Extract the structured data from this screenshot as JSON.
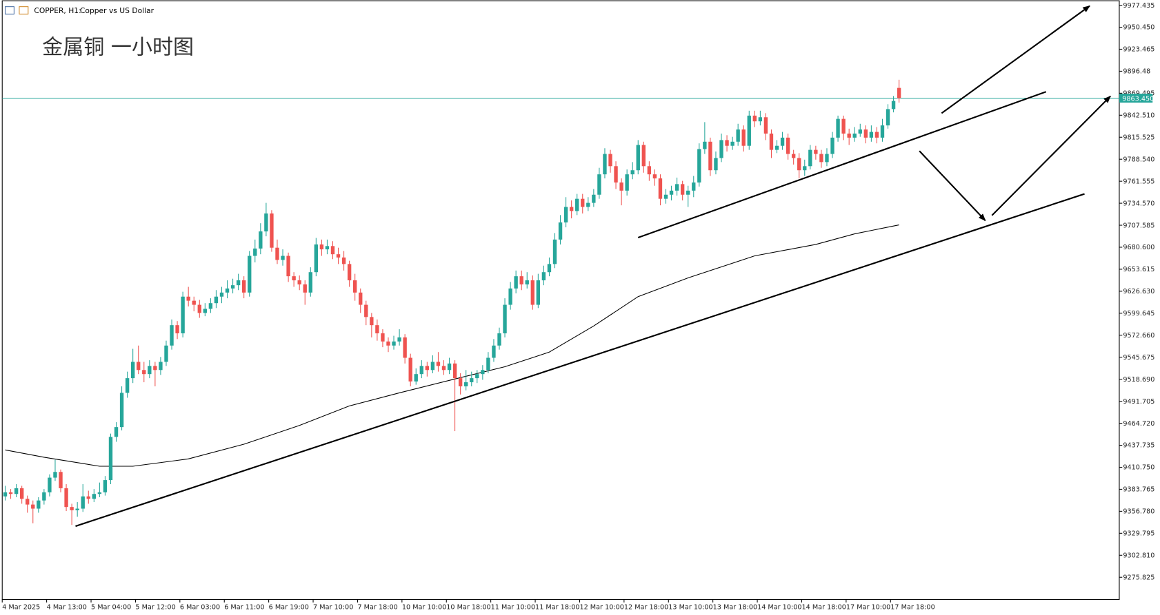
{
  "chart_data": {
    "type": "candlestick",
    "symbol": "COPPER, H1:",
    "description": "Copper vs US Dollar",
    "annotation": "金属铜 一小时图",
    "up_color": "#26a69a",
    "down_color": "#ef5350",
    "ylim": [
      9248.6,
      9982.9
    ],
    "yticks": [
      9977.435,
      {
        "value": 9950.45,
        "label": "9950.450"
      },
      9923.465,
      9896.48,
      9869.495,
      {
        "value": 9842.51,
        "label": "9842.510"
      },
      9815.525,
      {
        "value": 9788.54,
        "label": "9788.540"
      },
      9761.555,
      {
        "value": 9734.57,
        "label": "9734.570"
      },
      9707.585,
      {
        "value": 9680.6,
        "label": "9680.600"
      },
      9653.615,
      {
        "value": 9626.63,
        "label": "9626.630"
      },
      9599.645,
      {
        "value": 9572.66,
        "label": "9572.660"
      },
      9545.675,
      {
        "value": 9518.69,
        "label": "9518.690"
      },
      9491.705,
      {
        "value": 9464.72,
        "label": "9464.720"
      },
      9437.735,
      {
        "value": 9410.75,
        "label": "9410.750"
      },
      9383.765,
      {
        "value": 9356.78,
        "label": "9356.780"
      },
      9329.795,
      {
        "value": 9302.81,
        "label": "9302.810"
      },
      9275.825
    ],
    "xticks": [
      {
        "value": 0,
        "label": "4 Mar 2025"
      },
      {
        "value": 8,
        "label": "4 Mar 13:00"
      },
      {
        "value": 16,
        "label": "5 Mar 04:00"
      },
      {
        "value": 24,
        "label": "5 Mar 12:00"
      },
      {
        "value": 32,
        "label": "6 Mar 03:00"
      },
      {
        "value": 40,
        "label": "6 Mar 11:00"
      },
      {
        "value": 48,
        "label": "6 Mar 19:00"
      },
      {
        "value": 56,
        "label": "7 Mar 10:00"
      },
      {
        "value": 64,
        "label": "7 Mar 18:00"
      },
      {
        "value": 72,
        "label": "10 Mar 10:00"
      },
      {
        "value": 80,
        "label": "10 Mar 18:00"
      },
      {
        "value": 88,
        "label": "11 Mar 10:00"
      },
      {
        "value": 96,
        "label": "11 Mar 18:00"
      },
      {
        "value": 104,
        "label": "12 Mar 10:00"
      },
      {
        "value": 112,
        "label": "12 Mar 18:00"
      },
      {
        "value": 120,
        "label": "13 Mar 10:00"
      },
      {
        "value": 128,
        "label": "13 Mar 18:00"
      },
      {
        "value": 136,
        "label": "14 Mar 10:00"
      },
      {
        "value": 144,
        "label": "14 Mar 18:00"
      },
      {
        "value": 152,
        "label": "17 Mar 10:00"
      },
      {
        "value": 160,
        "label": "17 Mar 18:00"
      }
    ],
    "last_price": {
      "value": 9863.45,
      "label": "9863.450",
      "color": "#26a69a"
    },
    "moving_average": {
      "color": "#000000",
      "x": [
        0,
        7,
        17,
        23,
        33,
        43,
        53,
        62,
        71,
        81,
        90,
        98,
        106,
        114,
        123,
        135,
        146,
        153,
        161
      ],
      "values": [
        9432,
        9423,
        9412,
        9412,
        9421,
        9439,
        9462,
        9486,
        9502,
        9519,
        9534,
        9552,
        9584,
        9620,
        9643,
        9670,
        9684,
        9697,
        9708
      ]
    },
    "ohlc": [
      [
        9375,
        9388,
        9370,
        9380
      ],
      [
        9380,
        9384,
        9372,
        9378
      ],
      [
        9378,
        9390,
        9374,
        9385
      ],
      [
        9385,
        9388,
        9366,
        9372
      ],
      [
        9372,
        9376,
        9355,
        9365
      ],
      [
        9365,
        9370,
        9342,
        9360
      ],
      [
        9360,
        9374,
        9355,
        9370
      ],
      [
        9370,
        9384,
        9365,
        9380
      ],
      [
        9380,
        9402,
        9375,
        9398
      ],
      [
        9398,
        9420,
        9394,
        9405
      ],
      [
        9405,
        9408,
        9380,
        9385
      ],
      [
        9385,
        9390,
        9357,
        9362
      ],
      [
        9362,
        9366,
        9340,
        9358
      ],
      [
        9358,
        9368,
        9350,
        9360
      ],
      [
        9360,
        9390,
        9356,
        9375
      ],
      [
        9375,
        9382,
        9366,
        9372
      ],
      [
        9372,
        9384,
        9368,
        9378
      ],
      [
        9378,
        9392,
        9374,
        9380
      ],
      [
        9380,
        9400,
        9376,
        9395
      ],
      [
        9395,
        9452,
        9390,
        9448
      ],
      [
        9448,
        9466,
        9442,
        9460
      ],
      [
        9460,
        9510,
        9456,
        9502
      ],
      [
        9502,
        9528,
        9496,
        9520
      ],
      [
        9520,
        9556,
        9514,
        9540
      ],
      [
        9540,
        9560,
        9525,
        9530
      ],
      [
        9530,
        9540,
        9515,
        9525
      ],
      [
        9525,
        9542,
        9520,
        9535
      ],
      [
        9535,
        9540,
        9510,
        9530
      ],
      [
        9530,
        9546,
        9524,
        9540
      ],
      [
        9540,
        9566,
        9535,
        9560
      ],
      [
        9560,
        9592,
        9555,
        9585
      ],
      [
        9585,
        9590,
        9568,
        9575
      ],
      [
        9575,
        9626,
        9570,
        9620
      ],
      [
        9620,
        9632,
        9608,
        9615
      ],
      [
        9615,
        9620,
        9602,
        9610
      ],
      [
        9610,
        9616,
        9594,
        9600
      ],
      [
        9600,
        9612,
        9596,
        9605
      ],
      [
        9605,
        9618,
        9600,
        9612
      ],
      [
        9612,
        9628,
        9606,
        9620
      ],
      [
        9620,
        9632,
        9612,
        9625
      ],
      [
        9625,
        9640,
        9618,
        9630
      ],
      [
        9630,
        9642,
        9624,
        9634
      ],
      [
        9634,
        9648,
        9628,
        9640
      ],
      [
        9640,
        9645,
        9618,
        9625
      ],
      [
        9625,
        9676,
        9620,
        9670
      ],
      [
        9670,
        9690,
        9662,
        9679
      ],
      [
        9679,
        9710,
        9672,
        9700
      ],
      [
        9700,
        9735,
        9694,
        9722
      ],
      [
        9722,
        9726,
        9675,
        9680
      ],
      [
        9680,
        9690,
        9660,
        9665
      ],
      [
        9665,
        9678,
        9658,
        9670
      ],
      [
        9670,
        9674,
        9638,
        9645
      ],
      [
        9645,
        9650,
        9632,
        9640
      ],
      [
        9640,
        9646,
        9628,
        9635
      ],
      [
        9635,
        9640,
        9610,
        9625
      ],
      [
        9625,
        9656,
        9620,
        9650
      ],
      [
        9650,
        9692,
        9645,
        9684
      ],
      [
        9684,
        9690,
        9670,
        9678
      ],
      [
        9678,
        9690,
        9672,
        9682
      ],
      [
        9682,
        9688,
        9666,
        9672
      ],
      [
        9672,
        9680,
        9660,
        9668
      ],
      [
        9668,
        9676,
        9652,
        9660
      ],
      [
        9660,
        9664,
        9632,
        9640
      ],
      [
        9640,
        9648,
        9615,
        9625
      ],
      [
        9625,
        9630,
        9600,
        9610
      ],
      [
        9610,
        9615,
        9585,
        9595
      ],
      [
        9595,
        9600,
        9570,
        9585
      ],
      [
        9585,
        9592,
        9566,
        9575
      ],
      [
        9575,
        9580,
        9558,
        9565
      ],
      [
        9565,
        9570,
        9552,
        9560
      ],
      [
        9560,
        9572,
        9555,
        9565
      ],
      [
        9565,
        9580,
        9560,
        9570
      ],
      [
        9570,
        9574,
        9538,
        9545
      ],
      [
        9545,
        9550,
        9510,
        9516
      ],
      [
        9516,
        9532,
        9512,
        9525
      ],
      [
        9525,
        9542,
        9520,
        9535
      ],
      [
        9535,
        9540,
        9522,
        9530
      ],
      [
        9530,
        9548,
        9526,
        9540
      ],
      [
        9540,
        9552,
        9528,
        9535
      ],
      [
        9535,
        9542,
        9524,
        9530
      ],
      [
        9530,
        9545,
        9525,
        9538
      ],
      [
        9538,
        9542,
        9455,
        9520
      ],
      [
        9520,
        9526,
        9500,
        9510
      ],
      [
        9510,
        9530,
        9505,
        9515
      ],
      [
        9515,
        9528,
        9510,
        9520
      ],
      [
        9520,
        9530,
        9514,
        9525
      ],
      [
        9525,
        9536,
        9518,
        9530
      ],
      [
        9530,
        9552,
        9526,
        9545
      ],
      [
        9545,
        9568,
        9540,
        9560
      ],
      [
        9560,
        9582,
        9555,
        9575
      ],
      [
        9575,
        9618,
        9570,
        9610
      ],
      [
        9610,
        9638,
        9604,
        9630
      ],
      [
        9630,
        9652,
        9624,
        9645
      ],
      [
        9645,
        9652,
        9628,
        9635
      ],
      [
        9635,
        9650,
        9630,
        9640
      ],
      [
        9640,
        9646,
        9604,
        9610
      ],
      [
        9610,
        9648,
        9606,
        9640
      ],
      [
        9640,
        9658,
        9634,
        9650
      ],
      [
        9650,
        9668,
        9645,
        9660
      ],
      [
        9660,
        9698,
        9655,
        9690
      ],
      [
        9690,
        9720,
        9684,
        9711
      ],
      [
        9711,
        9742,
        9705,
        9730
      ],
      [
        9730,
        9738,
        9716,
        9725
      ],
      [
        9725,
        9746,
        9720,
        9740
      ],
      [
        9740,
        9746,
        9722,
        9730
      ],
      [
        9730,
        9742,
        9725,
        9735
      ],
      [
        9735,
        9752,
        9730,
        9745
      ],
      [
        9745,
        9778,
        9740,
        9770
      ],
      [
        9770,
        9802,
        9765,
        9795
      ],
      [
        9795,
        9800,
        9772,
        9780
      ],
      [
        9780,
        9786,
        9752,
        9760
      ],
      [
        9760,
        9765,
        9732,
        9750
      ],
      [
        9750,
        9776,
        9744,
        9770
      ],
      [
        9770,
        9785,
        9764,
        9775
      ],
      [
        9775,
        9812,
        9770,
        9806
      ],
      [
        9806,
        9810,
        9772,
        9780
      ],
      [
        9780,
        9786,
        9762,
        9770
      ],
      [
        9770,
        9776,
        9756,
        9765
      ],
      [
        9765,
        9770,
        9732,
        9740
      ],
      [
        9740,
        9752,
        9734,
        9745
      ],
      [
        9745,
        9756,
        9738,
        9750
      ],
      [
        9750,
        9766,
        9744,
        9758
      ],
      [
        9758,
        9762,
        9738,
        9745
      ],
      [
        9745,
        9756,
        9730,
        9750
      ],
      [
        9750,
        9768,
        9742,
        9760
      ],
      [
        9760,
        9808,
        9755,
        9801
      ],
      [
        9801,
        9834,
        9795,
        9810
      ],
      [
        9810,
        9815,
        9768,
        9775
      ],
      [
        9775,
        9798,
        9770,
        9790
      ],
      [
        9790,
        9820,
        9785,
        9812
      ],
      [
        9812,
        9818,
        9798,
        9805
      ],
      [
        9805,
        9816,
        9800,
        9810
      ],
      [
        9810,
        9832,
        9805,
        9825
      ],
      [
        9825,
        9830,
        9798,
        9805
      ],
      [
        9805,
        9848,
        9800,
        9842
      ],
      [
        9842,
        9848,
        9828,
        9835
      ],
      [
        9835,
        9848,
        9830,
        9840
      ],
      [
        9840,
        9845,
        9812,
        9820
      ],
      [
        9820,
        9825,
        9790,
        9800
      ],
      [
        9800,
        9812,
        9796,
        9805
      ],
      [
        9805,
        9822,
        9800,
        9815
      ],
      [
        9815,
        9820,
        9788,
        9795
      ],
      [
        9795,
        9800,
        9782,
        9790
      ],
      [
        9790,
        9796,
        9765,
        9775
      ],
      [
        9775,
        9788,
        9768,
        9780
      ],
      [
        9780,
        9806,
        9776,
        9800
      ],
      [
        9800,
        9805,
        9788,
        9795
      ],
      [
        9795,
        9800,
        9778,
        9785
      ],
      [
        9785,
        9802,
        9780,
        9795
      ],
      [
        9795,
        9822,
        9790,
        9815
      ],
      [
        9815,
        9842,
        9810,
        9838
      ],
      [
        9838,
        9842,
        9812,
        9820
      ],
      [
        9820,
        9826,
        9806,
        9815
      ],
      [
        9815,
        9828,
        9810,
        9820
      ],
      [
        9820,
        9832,
        9816,
        9825
      ],
      [
        9825,
        9830,
        9808,
        9815
      ],
      [
        9815,
        9830,
        9810,
        9822
      ],
      [
        9822,
        9828,
        9808,
        9815
      ],
      [
        9815,
        9838,
        9810,
        9830
      ],
      [
        9830,
        9856,
        9826,
        9850
      ],
      [
        9850,
        9866,
        9846,
        9860
      ],
      [
        9876,
        9886,
        9858,
        9863.45
      ]
    ]
  }
}
